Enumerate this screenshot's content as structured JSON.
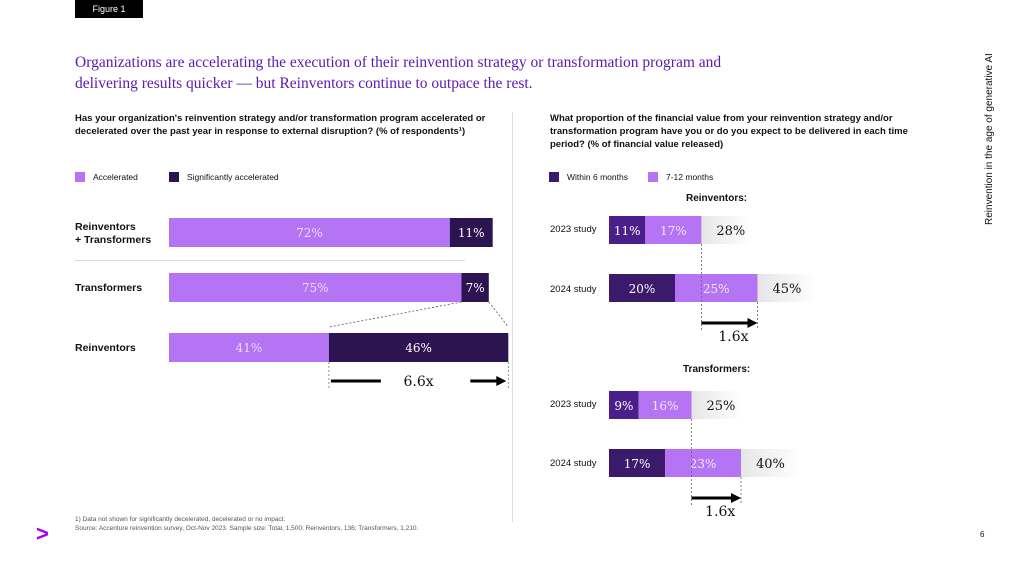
{
  "figure_tag": "Figure 1",
  "headline": "Organizations are accelerating the execution of their reinvention strategy or transformation program and delivering results quicker — but Reinventors continue to outpace the rest.",
  "side_title": "Reinvention in the age of generative AI",
  "page_number": "6",
  "logo_glyph": ">",
  "footnotes": {
    "line1": "1) Data not shown for significantly decelerated, decelerated or no impact.",
    "line2": "Source: Accenture reinvention survey, Oct-Nov 2023. Sample size: Total, 1,500; Reinventors, 136; Transformers, 1,210."
  },
  "colors": {
    "light_purple": "#b574f3",
    "dark_purple": "#3b1a6b",
    "mid_purple": "#6b2fc0",
    "deep_purple": "#2c1450",
    "fade_gray": "#e8e8e8",
    "brand": "#a100ff"
  },
  "chart_data": [
    {
      "type": "bar",
      "orientation": "horizontal",
      "stacked": true,
      "question": "Has your organization's reinvention strategy and/or transformation program accelerated or decelerated over the past year in response to external disruption? (% of respondents¹)",
      "legend": [
        "Accelerated",
        "Significantly accelerated"
      ],
      "categories": [
        "Reinventors\n+ Transformers",
        "Transformers",
        "Reinventors"
      ],
      "category_lines": [
        [
          "Reinventors",
          "+ Transformers"
        ],
        [
          "Transformers"
        ],
        [
          "Reinventors"
        ]
      ],
      "series": [
        {
          "name": "Accelerated",
          "values": [
            72,
            75,
            41
          ],
          "labels": [
            "72%",
            "75%",
            "41%"
          ]
        },
        {
          "name": "Significantly accelerated",
          "values": [
            11,
            7,
            46
          ],
          "labels": [
            "11%",
            "7%",
            "46%"
          ]
        }
      ],
      "annotation": "6.6x",
      "xlim": [
        0,
        100
      ]
    },
    {
      "type": "bar",
      "orientation": "horizontal",
      "stacked": true,
      "question": "What proportion of the financial value from your reinvention strategy and/or transformation program have you or do you expect to be delivered in each time period? (% of financial value released)",
      "legend": [
        "Within 6 months",
        "7-12 months"
      ],
      "groups": [
        {
          "name": "Reinventors:",
          "categories": [
            "2023 study",
            "2024 study"
          ],
          "series": [
            {
              "name": "Within 6 months",
              "values": [
                11,
                20
              ],
              "labels": [
                "11%",
                "20%"
              ]
            },
            {
              "name": "7-12 months",
              "values": [
                17,
                25
              ],
              "labels": [
                "17%",
                "25%"
              ]
            }
          ],
          "totals": [
            "28%",
            "45%"
          ],
          "annotation": "1.6x"
        },
        {
          "name": "Transformers:",
          "categories": [
            "2023 study",
            "2024 study"
          ],
          "series": [
            {
              "name": "Within 6 months",
              "values": [
                9,
                17
              ],
              "labels": [
                "9%",
                "17%"
              ]
            },
            {
              "name": "7-12 months",
              "values": [
                16,
                23
              ],
              "labels": [
                "16%",
                "23%"
              ]
            }
          ],
          "totals": [
            "25%",
            "40%"
          ],
          "annotation": "1.6x"
        }
      ]
    }
  ]
}
